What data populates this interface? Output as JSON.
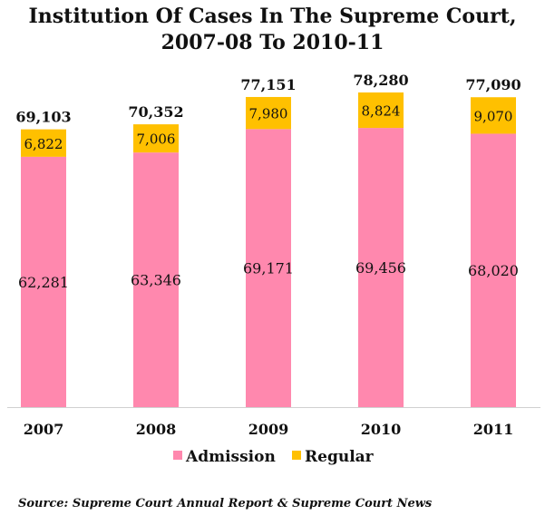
{
  "chart_data": {
    "type": "bar",
    "stacked": true,
    "title": "Institution Of Cases In The Supreme Court,",
    "subtitle": "2007-08 To 2010-11",
    "categories": [
      "2007",
      "2008",
      "2009",
      "2010",
      "2011"
    ],
    "series": [
      {
        "name": "Admission",
        "values": [
          62281,
          63346,
          69171,
          69456,
          68020
        ],
        "color": "#ff88ae",
        "labels": [
          "62,281",
          "63,346",
          "69,171",
          "69,456",
          "68,020"
        ]
      },
      {
        "name": "Regular",
        "values": [
          6822,
          7006,
          7980,
          8824,
          9070
        ],
        "color": "#ffc000",
        "labels": [
          "6,822",
          "7,006",
          "7,980",
          "8,824",
          "9,070"
        ]
      }
    ],
    "totals": [
      "69,103",
      "70,352",
      "77,151",
      "78,280",
      "77,090"
    ],
    "ylim": [
      0,
      90000
    ],
    "grid": false,
    "legend_position": "bottom"
  },
  "source": "Source: Supreme Court Annual Report & Supreme Court News"
}
